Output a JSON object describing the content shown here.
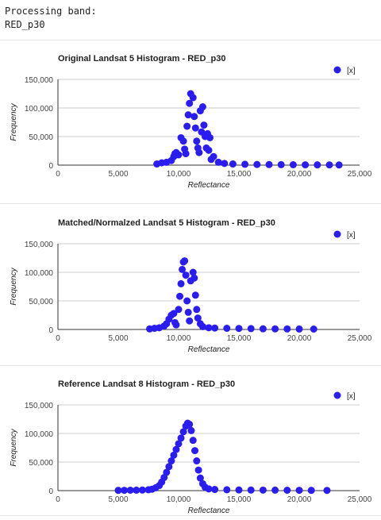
{
  "console": {
    "line1": "Processing band:",
    "line2": "RED_p30"
  },
  "colors": {
    "point": "#2b1cf2",
    "grid": "#cccccc",
    "axis": "#333333",
    "text": "#222222",
    "tick": "#444444"
  },
  "chart_data": [
    {
      "type": "scatter",
      "title": "Original Landsat 5 Histogram - RED_p30",
      "xlabel": "Reflectance",
      "ylabel": "Frequency",
      "legend": "[x]",
      "legend_position": "top-right",
      "grid": true,
      "xlim": [
        0,
        25000
      ],
      "ylim": [
        0,
        150000
      ],
      "xticks": [
        "0",
        "5,000",
        "10,000",
        "15,000",
        "20,000",
        "25,000"
      ],
      "yticks": [
        "0",
        "50,000",
        "100,000",
        "150,000"
      ],
      "points": [
        [
          8200,
          2000
        ],
        [
          8600,
          4000
        ],
        [
          9000,
          5000
        ],
        [
          9400,
          8000
        ],
        [
          9600,
          15000
        ],
        [
          9700,
          20000
        ],
        [
          9800,
          22000
        ],
        [
          10000,
          18000
        ],
        [
          10200,
          48000
        ],
        [
          10400,
          42000
        ],
        [
          10500,
          28000
        ],
        [
          10600,
          20000
        ],
        [
          10700,
          68000
        ],
        [
          10800,
          88000
        ],
        [
          10900,
          108000
        ],
        [
          11000,
          125000
        ],
        [
          11200,
          118000
        ],
        [
          11300,
          85000
        ],
        [
          11400,
          65000
        ],
        [
          11500,
          42000
        ],
        [
          11600,
          30000
        ],
        [
          11700,
          22000
        ],
        [
          11800,
          95000
        ],
        [
          11900,
          58000
        ],
        [
          12000,
          102000
        ],
        [
          12100,
          70000
        ],
        [
          12200,
          50000
        ],
        [
          12300,
          30000
        ],
        [
          12400,
          55000
        ],
        [
          12500,
          26000
        ],
        [
          12600,
          48000
        ],
        [
          12700,
          10000
        ],
        [
          12900,
          15000
        ],
        [
          13300,
          5000
        ],
        [
          13800,
          3000
        ],
        [
          14500,
          2000
        ],
        [
          15500,
          1500
        ],
        [
          16500,
          1200
        ],
        [
          17500,
          1000
        ],
        [
          18500,
          800
        ],
        [
          19500,
          700
        ],
        [
          20500,
          600
        ],
        [
          21500,
          500
        ],
        [
          22500,
          400
        ],
        [
          23300,
          300
        ]
      ]
    },
    {
      "type": "scatter",
      "title": "Matched/Normalzed Landsat 5 Histogram - RED_p30",
      "xlabel": "Reflectance",
      "ylabel": "Frequency",
      "legend": "[x]",
      "legend_position": "top-right",
      "grid": true,
      "xlim": [
        0,
        25000
      ],
      "ylim": [
        0,
        150000
      ],
      "xticks": [
        "0",
        "5,000",
        "10,000",
        "15,000",
        "20,000",
        "25,000"
      ],
      "yticks": [
        "0",
        "50,000",
        "100,000",
        "150,000"
      ],
      "points": [
        [
          7600,
          1000
        ],
        [
          8000,
          2000
        ],
        [
          8400,
          3000
        ],
        [
          8800,
          6000
        ],
        [
          9000,
          10000
        ],
        [
          9200,
          18000
        ],
        [
          9400,
          25000
        ],
        [
          9600,
          28000
        ],
        [
          9700,
          12000
        ],
        [
          9800,
          8000
        ],
        [
          10000,
          35000
        ],
        [
          10100,
          58000
        ],
        [
          10200,
          80000
        ],
        [
          10300,
          105000
        ],
        [
          10400,
          118000
        ],
        [
          10500,
          120000
        ],
        [
          10600,
          95000
        ],
        [
          10700,
          50000
        ],
        [
          10800,
          30000
        ],
        [
          10900,
          15000
        ],
        [
          11000,
          85000
        ],
        [
          11200,
          100000
        ],
        [
          11300,
          90000
        ],
        [
          11400,
          60000
        ],
        [
          11500,
          35000
        ],
        [
          11600,
          20000
        ],
        [
          11800,
          10000
        ],
        [
          12000,
          5000
        ],
        [
          12500,
          3000
        ],
        [
          13000,
          2500
        ],
        [
          14000,
          2000
        ],
        [
          15000,
          1800
        ],
        [
          16000,
          1500
        ],
        [
          17000,
          1200
        ],
        [
          18000,
          1000
        ],
        [
          19000,
          900
        ],
        [
          20000,
          800
        ],
        [
          21200,
          700
        ]
      ]
    },
    {
      "type": "scatter",
      "title": "Reference Landsat 8 Histogram - RED_p30",
      "xlabel": "Reflectance",
      "ylabel": "Frequency",
      "legend": "[x]",
      "legend_position": "top-right",
      "grid": true,
      "xlim": [
        0,
        25000
      ],
      "ylim": [
        0,
        150000
      ],
      "xticks": [
        "0",
        "5,000",
        "10,000",
        "15,000",
        "20,000",
        "25,000"
      ],
      "yticks": [
        "0",
        "50,000",
        "100,000",
        "150,000"
      ],
      "points": [
        [
          5000,
          500
        ],
        [
          5500,
          600
        ],
        [
          6000,
          700
        ],
        [
          6500,
          800
        ],
        [
          7000,
          1000
        ],
        [
          7500,
          1500
        ],
        [
          7800,
          2500
        ],
        [
          8100,
          5000
        ],
        [
          8400,
          9000
        ],
        [
          8600,
          15000
        ],
        [
          8800,
          23000
        ],
        [
          9000,
          32000
        ],
        [
          9200,
          42000
        ],
        [
          9400,
          52000
        ],
        [
          9600,
          62000
        ],
        [
          9800,
          72000
        ],
        [
          10000,
          82000
        ],
        [
          10200,
          92000
        ],
        [
          10400,
          103000
        ],
        [
          10600,
          113000
        ],
        [
          10750,
          118000
        ],
        [
          10900,
          116000
        ],
        [
          11050,
          105000
        ],
        [
          11200,
          88000
        ],
        [
          11350,
          70000
        ],
        [
          11500,
          52000
        ],
        [
          11650,
          36000
        ],
        [
          11800,
          22000
        ],
        [
          12000,
          12000
        ],
        [
          12200,
          6000
        ],
        [
          12500,
          3000
        ],
        [
          13000,
          2000
        ],
        [
          14000,
          1500
        ],
        [
          15000,
          1200
        ],
        [
          16000,
          1000
        ],
        [
          17000,
          900
        ],
        [
          18000,
          800
        ],
        [
          19000,
          700
        ],
        [
          20000,
          600
        ],
        [
          21000,
          500
        ],
        [
          22300,
          400
        ]
      ]
    }
  ]
}
